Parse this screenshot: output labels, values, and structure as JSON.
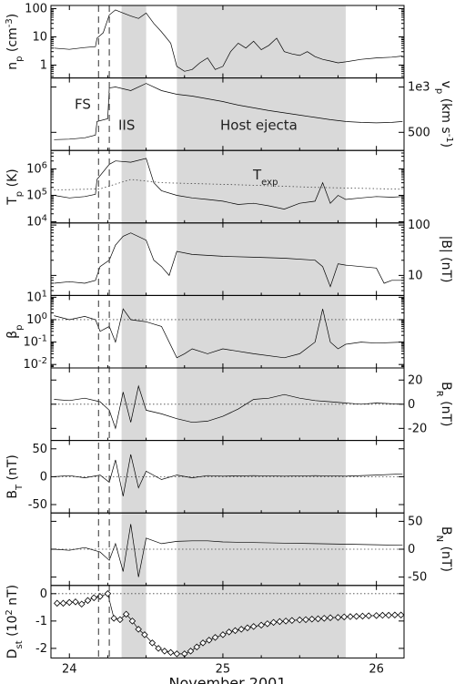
{
  "chart_data": {
    "type": "line",
    "xlabel": "November 2001",
    "x_unit": "day of November 2001 (UT)",
    "xlim": [
      23.88,
      26.18
    ],
    "x_ticks": [
      24,
      25,
      26
    ],
    "x_tick_labels": [
      "24",
      "25",
      "26"
    ],
    "dashed_lines_x": [
      24.19,
      24.26
    ],
    "shaded_regions": [
      {
        "x": [
          24.34,
          24.5
        ],
        "label": "IIS"
      },
      {
        "x": [
          24.7,
          25.8
        ],
        "label": "Host ejecta"
      }
    ],
    "annotations": [
      {
        "text": "FS",
        "panel": "vp"
      },
      {
        "text": "IIS",
        "panel": "vp"
      },
      {
        "text": "Host ejecta",
        "panel": "vp"
      },
      {
        "text": "T",
        "subscript": "exp",
        "panel": "Tp"
      }
    ],
    "panels": [
      {
        "id": "np",
        "label": "n",
        "label_sub": "p",
        "label_rest": " (cm",
        "label_sup": "-3",
        "label_end": ")",
        "side": "left",
        "scale": "log",
        "ylim": [
          0.35,
          130
        ],
        "ticks": [
          1,
          10,
          100
        ],
        "tick_labels": [
          "1",
          "10",
          "100"
        ],
        "series": [
          {
            "name": "n_p",
            "x": [
              23.9,
              24.0,
              24.1,
              24.17,
              24.18,
              24.22,
              24.26,
              24.3,
              24.35,
              24.4,
              24.45,
              24.5,
              24.55,
              24.6,
              24.66,
              24.7,
              24.75,
              24.8,
              24.85,
              24.9,
              24.95,
              25.0,
              25.05,
              25.1,
              25.15,
              25.2,
              25.25,
              25.3,
              25.35,
              25.4,
              25.45,
              25.5,
              25.55,
              25.6,
              25.65,
              25.7,
              25.75,
              25.8,
              25.9,
              26.0,
              26.1,
              26.17
            ],
            "values": [
              4,
              3.6,
              4.2,
              4.5,
              9,
              14,
              60,
              90,
              70,
              55,
              45,
              70,
              30,
              15,
              6,
              0.9,
              0.6,
              0.7,
              1.2,
              1.8,
              0.7,
              0.9,
              3,
              6,
              4,
              7,
              3.5,
              5,
              9,
              3,
              2.5,
              2.2,
              3,
              2,
              1.6,
              1.4,
              1.2,
              1.3,
              1.6,
              1.8,
              1.9,
              2.1
            ]
          }
        ]
      },
      {
        "id": "vp",
        "label": "v",
        "label_sub": "p",
        "label_rest": " (km s",
        "label_sup": "-1",
        "label_end": ")",
        "side": "right",
        "scale": "linear",
        "ylim": [
          300,
          1100
        ],
        "ticks": [
          500,
          1000
        ],
        "tick_labels": [
          "500",
          "1e3"
        ],
        "series": [
          {
            "name": "v_p",
            "x": [
              23.9,
              24.0,
              24.1,
              24.17,
              24.18,
              24.25,
              24.26,
              24.3,
              24.4,
              24.5,
              24.6,
              24.7,
              24.8,
              24.9,
              25.0,
              25.1,
              25.2,
              25.3,
              25.4,
              25.5,
              25.6,
              25.7,
              25.8,
              25.9,
              26.0,
              26.1,
              26.17
            ],
            "values": [
              420,
              425,
              440,
              470,
              620,
              650,
              990,
              1000,
              960,
              1040,
              960,
              920,
              900,
              870,
              840,
              800,
              770,
              740,
              715,
              690,
              665,
              640,
              620,
              610,
              605,
              610,
              620
            ]
          }
        ]
      },
      {
        "id": "Tp",
        "label": "T",
        "label_sub": "p",
        "label_rest": " (K)",
        "side": "left",
        "scale": "log",
        "ylim": [
          9000,
          5000000
        ],
        "ticks": [
          10000,
          100000,
          1000000
        ],
        "tick_labels": [
          "10",
          "10",
          "10"
        ],
        "tick_sups": [
          "4",
          "5",
          "6"
        ],
        "series": [
          {
            "name": "T_p",
            "x": [
              23.9,
              24.0,
              24.1,
              24.17,
              24.18,
              24.26,
              24.3,
              24.4,
              24.5,
              24.55,
              24.6,
              24.7,
              24.8,
              24.9,
              25.0,
              25.1,
              25.2,
              25.3,
              25.4,
              25.5,
              25.6,
              25.65,
              25.7,
              25.75,
              25.8,
              25.9,
              26.0,
              26.1,
              26.17
            ],
            "values": [
              100000,
              80000,
              90000,
              110000,
              400000,
              1500000,
              2000000,
              1800000,
              2500000,
              300000,
              150000,
              100000,
              80000,
              70000,
              60000,
              45000,
              50000,
              40000,
              30000,
              50000,
              60000,
              300000,
              50000,
              100000,
              70000,
              80000,
              90000,
              85000,
              90000
            ]
          },
          {
            "name": "T_exp",
            "x": [
              23.9,
              24.1,
              24.2,
              24.4,
              24.6,
              24.8,
              25.0,
              25.2,
              25.4,
              25.6,
              25.8,
              26.0,
              26.17
            ],
            "values": [
              160000,
              170000,
              175000,
              400000,
              300000,
              280000,
              260000,
              240000,
              220000,
              200000,
              190000,
              180000,
              170000
            ]
          }
        ]
      },
      {
        "id": "B",
        "label": "|B| (nT)",
        "side": "right",
        "scale": "log",
        "ylim": [
          4,
          110
        ],
        "ticks": [
          10,
          100
        ],
        "tick_labels": [
          "10",
          "100"
        ],
        "series": [
          {
            "name": "|B|",
            "x": [
              23.9,
              24.0,
              24.1,
              24.17,
              24.2,
              24.26,
              24.3,
              24.35,
              24.4,
              24.5,
              24.55,
              24.6,
              24.65,
              24.7,
              24.8,
              24.9,
              25.0,
              25.2,
              25.4,
              25.6,
              25.65,
              25.7,
              25.75,
              25.8,
              25.9,
              26.0,
              26.05,
              26.1,
              26.17
            ],
            "values": [
              7,
              7.5,
              7,
              8,
              15,
              20,
              40,
              60,
              70,
              50,
              20,
              15,
              10,
              30,
              26,
              25,
              24,
              23,
              22,
              20,
              15,
              6,
              17,
              16,
              15,
              14,
              7,
              8,
              8
            ]
          }
        ]
      },
      {
        "id": "beta",
        "label": "β",
        "label_sub": "p",
        "side": "left",
        "scale": "log",
        "ylim": [
          0.007,
          12
        ],
        "ticks": [
          0.01,
          0.1,
          1,
          10
        ],
        "tick_labels": [
          "10",
          "10",
          "10",
          "10"
        ],
        "tick_sups": [
          "-2",
          "-1",
          "0",
          "1"
        ],
        "ref_line": 1,
        "series": [
          {
            "name": "β_p",
            "x": [
              23.9,
              24.0,
              24.1,
              24.17,
              24.2,
              24.26,
              24.3,
              24.35,
              24.4,
              24.5,
              24.6,
              24.7,
              24.75,
              24.8,
              24.9,
              25.0,
              25.2,
              25.4,
              25.5,
              25.6,
              25.65,
              25.7,
              25.75,
              25.8,
              25.9,
              26.0,
              26.17
            ],
            "values": [
              1.5,
              1,
              1.4,
              1,
              0.3,
              0.5,
              0.1,
              3,
              1,
              0.8,
              0.5,
              0.02,
              0.03,
              0.05,
              0.03,
              0.05,
              0.03,
              0.02,
              0.03,
              0.1,
              3,
              0.1,
              0.05,
              0.08,
              0.1,
              0.09,
              0.1
            ]
          }
        ]
      },
      {
        "id": "BR",
        "label": "B",
        "label_sub": "R",
        "label_rest": " (nT)",
        "side": "right",
        "scale": "linear",
        "ylim": [
          -30,
          30
        ],
        "ticks": [
          -20,
          0,
          20
        ],
        "tick_labels": [
          "-20",
          "0",
          "20"
        ],
        "ref_line": 0,
        "series": [
          {
            "name": "B_R",
            "x": [
              23.9,
              24.0,
              24.1,
              24.2,
              24.26,
              24.3,
              24.35,
              24.4,
              24.45,
              24.5,
              24.6,
              24.7,
              24.8,
              24.9,
              25.0,
              25.1,
              25.2,
              25.3,
              25.4,
              25.5,
              25.6,
              25.7,
              25.8,
              25.9,
              26.0,
              26.17
            ],
            "values": [
              4,
              3,
              5,
              2,
              -5,
              -20,
              10,
              -15,
              15,
              -5,
              -8,
              -12,
              -15,
              -14,
              -10,
              -4,
              4,
              5,
              8,
              5,
              3,
              2,
              1,
              0,
              1,
              0
            ]
          }
        ]
      },
      {
        "id": "BT",
        "label": "B",
        "label_sub": "T",
        "label_rest": " (nT)",
        "side": "left",
        "scale": "linear",
        "ylim": [
          -65,
          65
        ],
        "ticks": [
          -50,
          0,
          50
        ],
        "tick_labels": [
          "-50",
          "0",
          "50"
        ],
        "ref_line": 0,
        "series": [
          {
            "name": "B_T",
            "x": [
              23.9,
              24.0,
              24.1,
              24.2,
              24.26,
              24.3,
              24.35,
              24.4,
              24.45,
              24.5,
              24.6,
              24.7,
              24.8,
              24.9,
              25.0,
              25.2,
              25.4,
              25.6,
              25.8,
              26.0,
              26.17
            ],
            "values": [
              0,
              2,
              -2,
              3,
              -10,
              30,
              -35,
              40,
              -20,
              10,
              -5,
              3,
              -2,
              2,
              1,
              2,
              1,
              2,
              1,
              3,
              5
            ]
          }
        ]
      },
      {
        "id": "BN",
        "label": "B",
        "label_sub": "N",
        "label_rest": " (nT)",
        "side": "right",
        "scale": "linear",
        "ylim": [
          -65,
          65
        ],
        "ticks": [
          -50,
          0,
          50
        ],
        "tick_labels": [
          "-50",
          "0",
          "50"
        ],
        "ref_line": 0,
        "series": [
          {
            "name": "B_N",
            "x": [
              23.9,
              24.0,
              24.1,
              24.2,
              24.26,
              24.3,
              24.35,
              24.4,
              24.45,
              24.5,
              24.6,
              24.7,
              24.8,
              24.9,
              25.0,
              25.2,
              25.4,
              25.6,
              25.8,
              26.0,
              26.17
            ],
            "values": [
              0,
              -2,
              3,
              -5,
              -20,
              10,
              -40,
              45,
              -50,
              20,
              10,
              14,
              15,
              15,
              13,
              12,
              11,
              10,
              9,
              8,
              7
            ]
          }
        ]
      },
      {
        "id": "Dst",
        "label": "D",
        "label_sub": "st",
        "label_rest": " (10",
        "label_sup": "2",
        "label_end": " nT)",
        "side": "left",
        "scale": "linear",
        "ylim": [
          -2.35,
          0.3
        ],
        "ticks": [
          -2,
          -1,
          0
        ],
        "tick_labels": [
          "-2",
          "-1",
          "0"
        ],
        "ref_line": 0,
        "markers": "diamond",
        "series": [
          {
            "name": "D_st",
            "x": [
              23.92,
              23.96,
              24.0,
              24.04,
              24.08,
              24.12,
              24.16,
              24.2,
              24.25,
              24.29,
              24.33,
              24.37,
              24.41,
              24.45,
              24.49,
              24.54,
              24.58,
              24.62,
              24.66,
              24.7,
              24.75,
              24.79,
              24.83,
              24.87,
              24.91,
              24.95,
              25.0,
              25.04,
              25.08,
              25.12,
              25.16,
              25.2,
              25.25,
              25.29,
              25.33,
              25.37,
              25.41,
              25.45,
              25.5,
              25.54,
              25.58,
              25.62,
              25.66,
              25.7,
              25.75,
              25.79,
              25.83,
              25.87,
              25.91,
              25.95,
              26.0,
              26.04,
              26.08,
              26.12,
              26.16
            ],
            "values": [
              -0.35,
              -0.35,
              -0.32,
              -0.3,
              -0.38,
              -0.25,
              -0.15,
              -0.1,
              0.0,
              -0.9,
              -0.95,
              -0.75,
              -1.0,
              -1.3,
              -1.5,
              -1.8,
              -2.0,
              -2.1,
              -2.15,
              -2.2,
              -2.2,
              -2.1,
              -1.95,
              -1.8,
              -1.7,
              -1.6,
              -1.5,
              -1.4,
              -1.35,
              -1.3,
              -1.25,
              -1.2,
              -1.15,
              -1.1,
              -1.05,
              -1.02,
              -1.0,
              -0.98,
              -0.96,
              -0.95,
              -0.93,
              -0.92,
              -0.9,
              -0.88,
              -0.87,
              -0.85,
              -0.84,
              -0.83,
              -0.82,
              -0.81,
              -0.8,
              -0.79,
              -0.79,
              -0.78,
              -0.78
            ]
          }
        ]
      }
    ]
  }
}
